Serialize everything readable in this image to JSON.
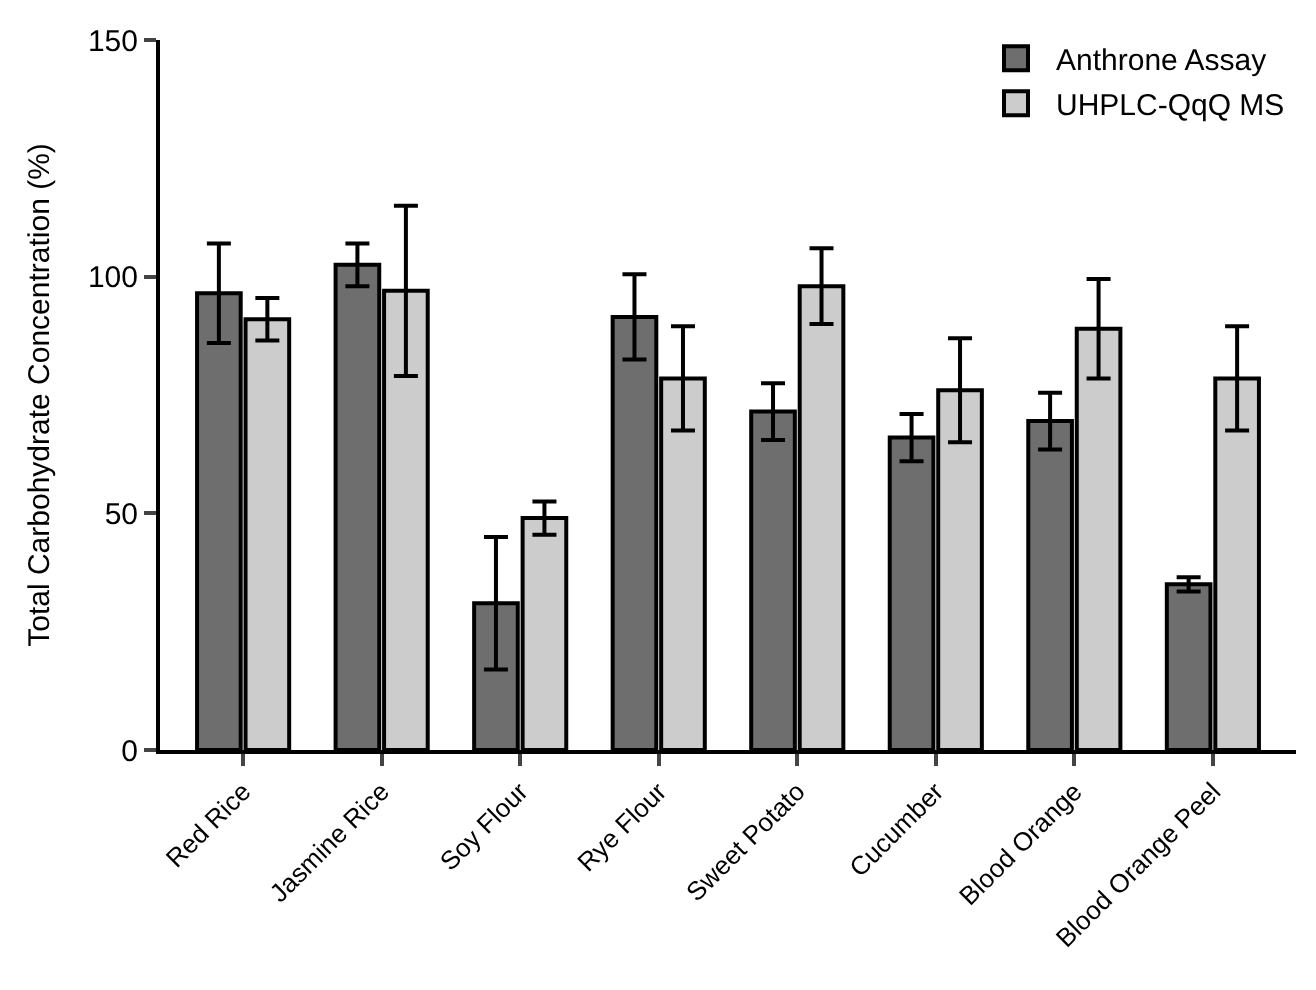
{
  "chart_data": {
    "type": "bar",
    "ylabel": "Total Carbohydrate Concentration (%)",
    "categories": [
      "Red Rice",
      "Jasmine Rice",
      "Soy Flour",
      "Rye Flour",
      "Sweet Potato",
      "Cucumber",
      "Blood Orange",
      "Blood Orange Peel"
    ],
    "series": [
      {
        "name": "Anthrone Assay",
        "color": "#6e6e6e",
        "values": [
          96.5,
          102.5,
          31,
          91.5,
          71.5,
          66,
          69.5,
          35
        ],
        "errors": [
          10.5,
          4.5,
          14,
          9,
          6,
          5,
          6,
          1.5
        ]
      },
      {
        "name": "UHPLC-QqQ MS",
        "color": "#cccccc",
        "values": [
          91,
          97,
          49,
          78.5,
          98,
          76,
          89,
          78.5
        ],
        "errors": [
          4.5,
          18,
          3.5,
          11,
          8,
          11,
          10.5,
          11
        ]
      }
    ],
    "ylim": [
      0,
      150
    ],
    "yticks": [
      0,
      50,
      100,
      150
    ],
    "grid": false,
    "legend": "top right"
  }
}
